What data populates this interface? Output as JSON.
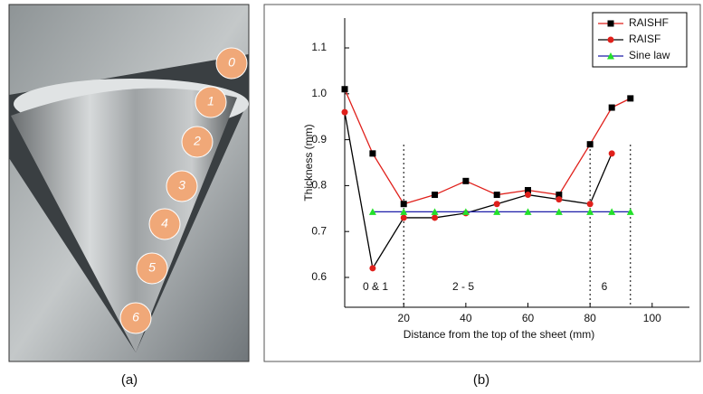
{
  "panels": [
    "(a)",
    "(b)"
  ],
  "photo_markers": [
    "0",
    "1",
    "2",
    "3",
    "4",
    "5",
    "6"
  ],
  "chart_data": {
    "type": "line",
    "x_label": "Distance from the top of the sheet (mm)",
    "y_label": "Thickness (mm)",
    "xlim": [
      1,
      112
    ],
    "ylim": [
      0.535,
      1.165
    ],
    "xticks": [
      20,
      40,
      60,
      80,
      100
    ],
    "yticks": [
      0.6,
      0.7,
      0.8,
      0.9,
      {
        "value": 1.0,
        "label": "1.0"
      },
      1.1
    ],
    "dividers": [
      20,
      80,
      93
    ],
    "annotations": [
      "0 & 1",
      "2 - 5",
      "6"
    ],
    "legend": "upper right",
    "series": [
      {
        "name": "RAISHF",
        "color": "#e0201b",
        "marker": "square",
        "marker_color": "#000000",
        "x": [
          1,
          10,
          20,
          30,
          40,
          50,
          60,
          70,
          80,
          87,
          93
        ],
        "values": [
          1.01,
          0.87,
          0.76,
          0.78,
          0.81,
          0.78,
          0.79,
          0.78,
          0.89,
          0.97,
          0.99
        ]
      },
      {
        "name": "RAISF",
        "color": "#000000",
        "marker": "circle",
        "marker_color": "#e0201b",
        "x": [
          1,
          10,
          20,
          30,
          40,
          50,
          60,
          70,
          80,
          87
        ],
        "values": [
          0.96,
          0.62,
          0.73,
          0.73,
          0.74,
          0.76,
          0.78,
          0.77,
          0.76,
          0.87
        ]
      },
      {
        "name": "Sine law",
        "color": "#1c1ca8",
        "marker": "triangle",
        "marker_color": "#22e02a",
        "x": [
          10,
          20,
          30,
          40,
          50,
          60,
          70,
          80,
          87,
          93
        ],
        "values": [
          0.743,
          0.743,
          0.743,
          0.743,
          0.743,
          0.743,
          0.743,
          0.743,
          0.743,
          0.743
        ]
      }
    ]
  }
}
